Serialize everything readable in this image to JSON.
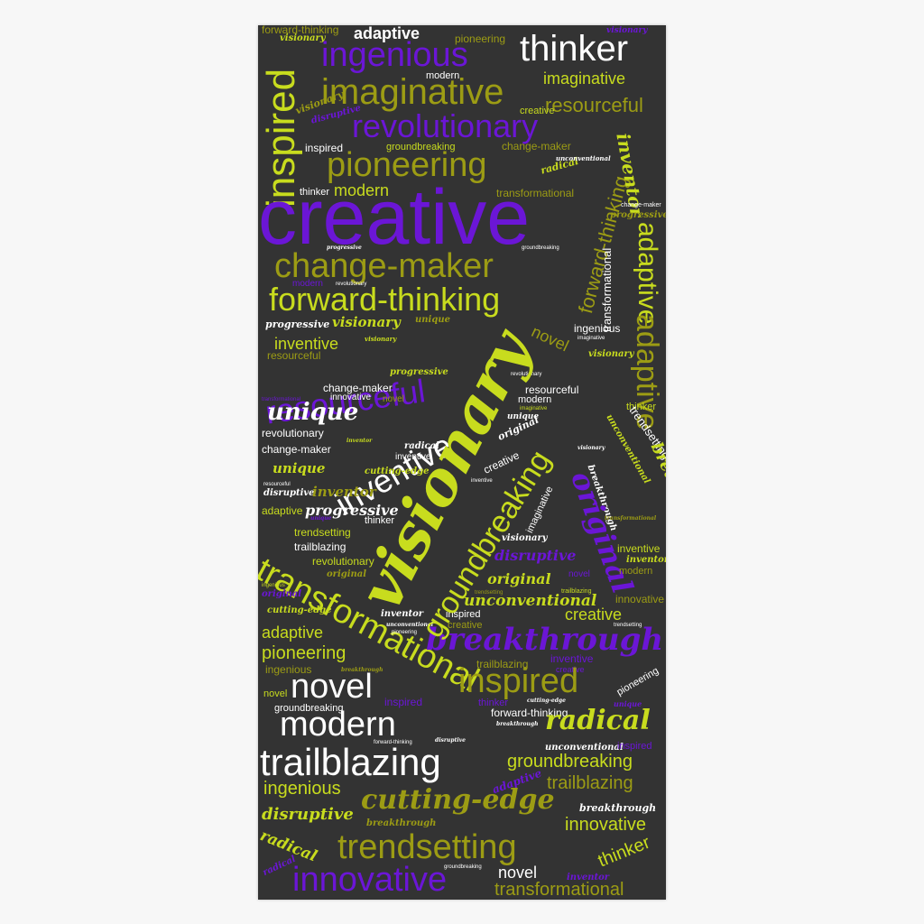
{
  "colors": {
    "background": "#333333",
    "purple": "#6b16d6",
    "lime": "#c8dc1e",
    "olive": "#9c9c14",
    "white": "#ffffff"
  },
  "words": {
    "creative": "creative",
    "visionary": "visionary",
    "ingenious": "ingenious",
    "thinker": "thinker",
    "imaginative": "imaginative",
    "revolutionary": "revolutionary",
    "inspired": "inspired",
    "pioneering": "pioneering",
    "change_maker": "change-maker",
    "forward_thinking": "forward-thinking",
    "resourceful": "resourceful",
    "adaptive": "adaptive",
    "inventive": "inventive",
    "unique": "unique",
    "groundbreaking": "groundbreaking",
    "original": "original",
    "breakthrough": "breakthrough",
    "transformational": "transformational",
    "trailblazing": "trailblazing",
    "modern": "modern",
    "novel": "novel",
    "radical": "radical",
    "cutting_edge": "cutting-edge",
    "trendsetting": "trendsetting",
    "innovative": "innovative",
    "disruptive": "disruptive",
    "progressive": "progressive",
    "unconventional": "unconventional",
    "inventor": "inventor"
  }
}
